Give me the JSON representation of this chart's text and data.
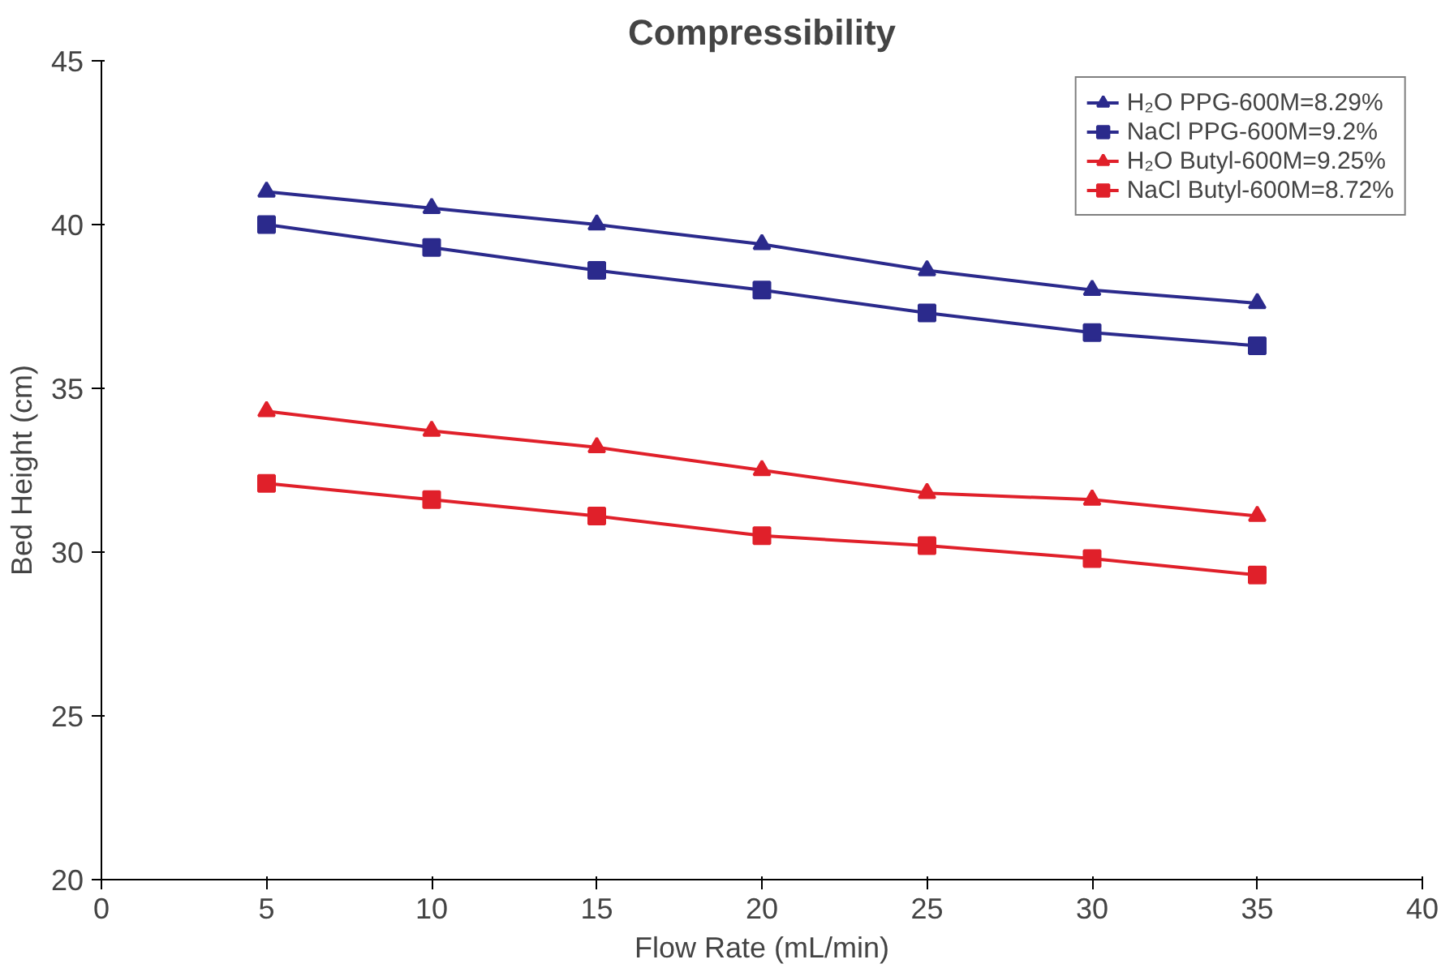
{
  "chart_data": {
    "type": "line",
    "title": "Compressibility",
    "xlabel": "Flow Rate (mL/min)",
    "ylabel": "Bed Height (cm)",
    "x": [
      5,
      10,
      15,
      20,
      25,
      30,
      35
    ],
    "xlim": [
      0,
      40
    ],
    "xticks": [
      0,
      5,
      10,
      15,
      20,
      25,
      30,
      35,
      40
    ],
    "ylim": [
      20,
      45
    ],
    "yticks": [
      20,
      25,
      30,
      35,
      40,
      45
    ],
    "grid": false,
    "legend": "top right",
    "line_style": "solid",
    "series": [
      {
        "name": "H₂O PPG-600M=8.29%",
        "color": "#2b2a8c",
        "marker": "triangle",
        "values": [
          41.0,
          40.5,
          40.0,
          39.4,
          38.6,
          38.0,
          37.6
        ]
      },
      {
        "name": "NaCl PPG-600M=9.2%",
        "color": "#2b2a8c",
        "marker": "square",
        "values": [
          40.0,
          39.3,
          38.6,
          38.0,
          37.3,
          36.7,
          36.3
        ]
      },
      {
        "name": "H₂O Butyl-600M=9.25%",
        "color": "#e0202a",
        "marker": "triangle",
        "values": [
          34.3,
          33.7,
          33.2,
          32.5,
          31.8,
          31.6,
          31.1
        ]
      },
      {
        "name": "NaCl Butyl-600M=8.72%",
        "color": "#e0202a",
        "marker": "square",
        "values": [
          32.1,
          31.6,
          31.1,
          30.5,
          30.2,
          29.8,
          29.3
        ]
      }
    ]
  }
}
